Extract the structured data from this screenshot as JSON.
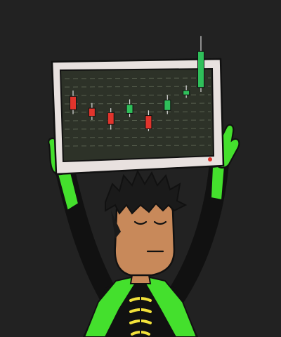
{
  "scene": {
    "description_icon": "person-holding-candlestick-chart-monitor",
    "colors": {
      "background": "#222222",
      "monitor_frame": "#e8e1df",
      "monitor_outline": "#b9b2b0",
      "screen": "#2d3228",
      "screen_grid": "#58604f",
      "candle_up": "#2fbf5a",
      "candle_down": "#e1342c",
      "wick": "#d8d8d8",
      "power_led": "#e1342c",
      "skin": "#c8895a",
      "skin_outline": "#111111",
      "hair": "#1a1a1a",
      "glove": "#44e02d",
      "suit": "#111111",
      "collar": "#44e02d",
      "buttons": "#f2e23a"
    }
  },
  "chart_data": {
    "type": "candlestick",
    "title": "",
    "xlabel": "",
    "ylabel": "",
    "grid": true,
    "ylim": [
      0,
      10
    ],
    "candles": [
      {
        "open": 7.4,
        "close": 5.6,
        "high": 8.2,
        "low": 5.0,
        "direction": "down"
      },
      {
        "open": 5.8,
        "close": 4.7,
        "high": 6.5,
        "low": 4.2,
        "direction": "down"
      },
      {
        "open": 5.2,
        "close": 3.6,
        "high": 5.8,
        "low": 2.9,
        "direction": "down"
      },
      {
        "open": 5.1,
        "close": 6.3,
        "high": 7.0,
        "low": 4.6,
        "direction": "up"
      },
      {
        "open": 4.8,
        "close": 3.0,
        "high": 5.5,
        "low": 2.7,
        "direction": "down"
      },
      {
        "open": 5.5,
        "close": 6.9,
        "high": 7.6,
        "low": 5.0,
        "direction": "up"
      },
      {
        "open": 7.6,
        "close": 8.2,
        "high": 8.9,
        "low": 7.2,
        "direction": "up"
      },
      {
        "open": 8.6,
        "close": 13.5,
        "high": 15.6,
        "low": 8.0,
        "direction": "up"
      }
    ]
  }
}
